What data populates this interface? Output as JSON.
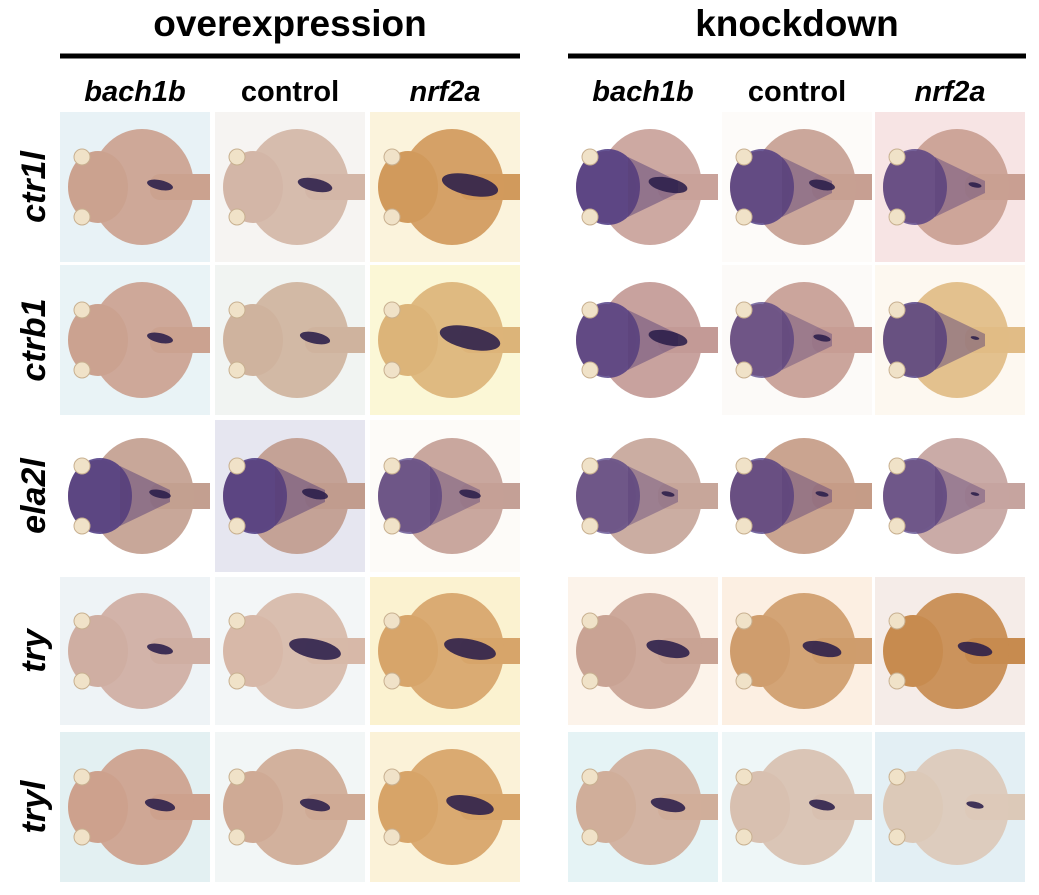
{
  "groups": [
    {
      "title": "overexpression",
      "columns": [
        "bach1b",
        "control",
        "nrf2a"
      ]
    },
    {
      "title": "knockdown",
      "columns": [
        "bach1b",
        "control",
        "nrf2a"
      ]
    }
  ],
  "rows": [
    "ctr1l",
    "ctrb1",
    "ela2l",
    "try",
    "tryl"
  ]
}
